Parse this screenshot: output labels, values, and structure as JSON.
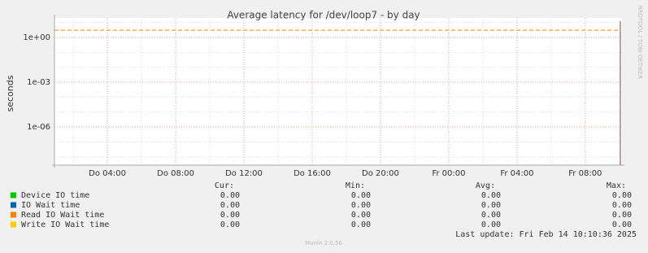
{
  "chart_data": {
    "type": "line",
    "title": "Average latency for /dev/loop7 - by day",
    "y_label": "seconds",
    "y_scale": "log",
    "grid": true,
    "ylim": [
      2.8e-09,
      20
    ],
    "yticks": [
      {
        "value": 1,
        "label": "1e+00"
      },
      {
        "value": 0.001,
        "label": "1e-03"
      },
      {
        "value": 1e-06,
        "label": "1e-06"
      }
    ],
    "xlim": [
      0.9,
      34.15
    ],
    "xticks": [
      {
        "value": 4,
        "label": "Do 04:00"
      },
      {
        "value": 8,
        "label": "Do 08:00"
      },
      {
        "value": 12,
        "label": "Do 12:00"
      },
      {
        "value": 16,
        "label": "Do 16:00"
      },
      {
        "value": 20,
        "label": "Do 20:00"
      },
      {
        "value": 24,
        "label": "Fr 00:00"
      },
      {
        "value": 28,
        "label": "Fr 04:00"
      },
      {
        "value": 32,
        "label": "Fr 08:00"
      }
    ],
    "threshold": {
      "value": 3,
      "color": "#ff8000"
    },
    "stat_headers": [
      "Cur:",
      "Min:",
      "Avg:",
      "Max:"
    ],
    "series": [
      {
        "name": "Device IO time",
        "color": "#00cc00",
        "stats": [
          "0.00",
          "0.00",
          "0.00",
          "0.00"
        ]
      },
      {
        "name": "IO Wait time",
        "color": "#0066b3",
        "stats": [
          "0.00",
          "0.00",
          "0.00",
          "0.00"
        ]
      },
      {
        "name": "Read IO Wait time",
        "color": "#ff8000",
        "stats": [
          "0.00",
          "0.00",
          "0.00",
          "0.00"
        ]
      },
      {
        "name": "Write IO Wait time",
        "color": "#ffcc00",
        "stats": [
          "0.00",
          "0.00",
          "0.00",
          "0.00"
        ]
      }
    ],
    "last_update": "Last update: Fri Feb 14 10:10:36 2025",
    "watermark": "RRDTOOL / TOBI OETIKER",
    "footer": "Munin 2.0.56"
  }
}
